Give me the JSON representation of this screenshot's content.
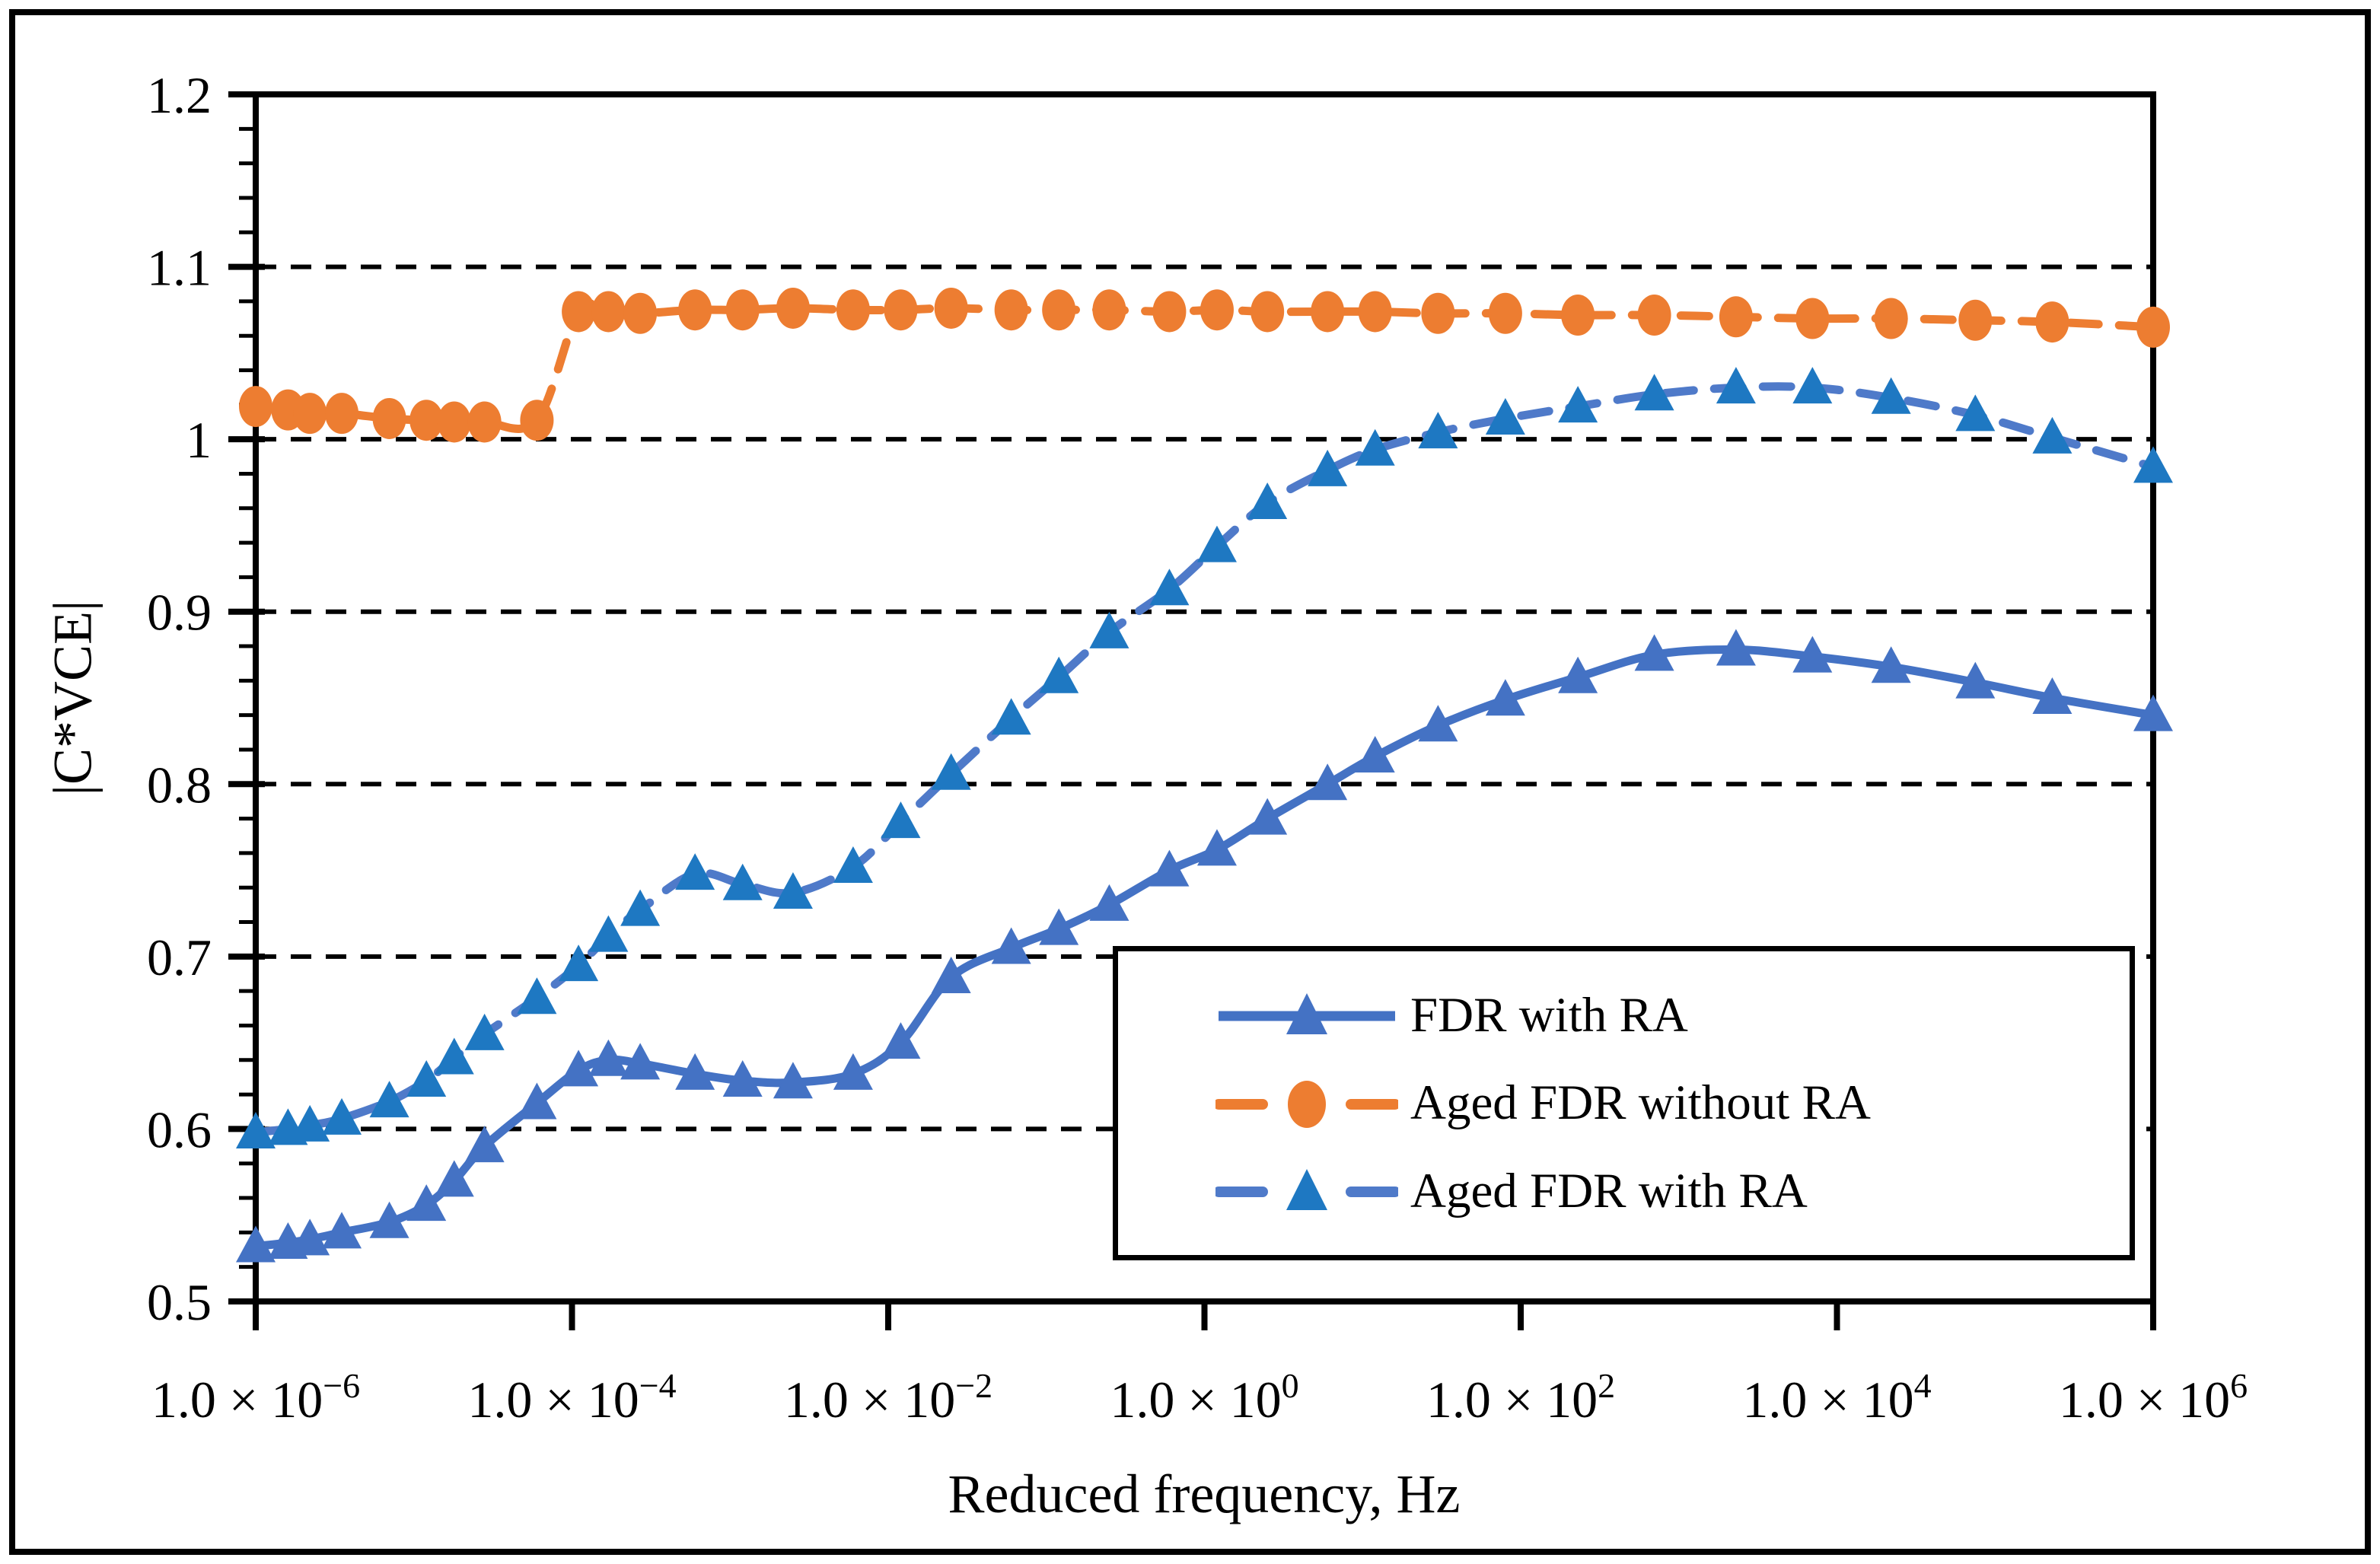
{
  "figure": {
    "background": "#ffffff",
    "frame_color": "#000000"
  },
  "chart_data": {
    "type": "line",
    "title": "",
    "xlabel": "Reduced frequency, Hz",
    "ylabel": "|C*VCE|",
    "x_scale": "log",
    "xlim": [
      1e-06,
      1000000
    ],
    "ylim": [
      0.5,
      1.2
    ],
    "grid": "horizontal dashed black lines at 0.1 intervals",
    "legend_position": "inside lower right, boxed",
    "y_tick_labels": [
      "1.2",
      "1.1",
      "1",
      "0.9",
      "0.8",
      "0.7",
      "0.6",
      "0.5"
    ],
    "y_tick_values": [
      1.2,
      1.1,
      1.0,
      0.9,
      0.8,
      0.7,
      0.6,
      0.5
    ],
    "y_minor_tick_step": 0.02,
    "x_ticks": [
      {
        "value": 1e-06,
        "mantissa": "1.0",
        "exponent": "−6"
      },
      {
        "value": 0.0001,
        "mantissa": "1.0",
        "exponent": "−4"
      },
      {
        "value": 0.01,
        "mantissa": "1.0",
        "exponent": "−2"
      },
      {
        "value": 1,
        "mantissa": "1.0",
        "exponent": "0"
      },
      {
        "value": 100,
        "mantissa": "1.0",
        "exponent": "2"
      },
      {
        "value": 10000,
        "mantissa": "1.0",
        "exponent": "4"
      },
      {
        "value": 1000000,
        "mantissa": "1.0",
        "exponent": "6"
      }
    ],
    "x_tick_times_glyph": "×",
    "x": [
      1e-06,
      1.6e-06,
      2.2e-06,
      3.5e-06,
      7e-06,
      1.2e-05,
      1.8e-05,
      2.8e-05,
      6e-05,
      0.00011,
      0.00017,
      0.00027,
      0.0006,
      0.0012,
      0.0025,
      0.006,
      0.012,
      0.025,
      0.06,
      0.12,
      0.25,
      0.6,
      1.2,
      2.5,
      6.0,
      12,
      30,
      80,
      230,
      700,
      2300,
      7000,
      22000,
      75000,
      230000,
      1000000
    ],
    "series": [
      {
        "name": "FDR with RA",
        "line_style": "solid",
        "marker": "triangle",
        "line_color": "#4472C4",
        "marker_color": "#4472C4",
        "values": [
          0.532,
          0.534,
          0.536,
          0.54,
          0.546,
          0.556,
          0.57,
          0.59,
          0.615,
          0.634,
          0.64,
          0.638,
          0.632,
          0.628,
          0.627,
          0.632,
          0.65,
          0.688,
          0.705,
          0.716,
          0.73,
          0.75,
          0.762,
          0.78,
          0.8,
          0.816,
          0.834,
          0.849,
          0.862,
          0.875,
          0.878,
          0.874,
          0.868,
          0.859,
          0.85,
          0.84
        ]
      },
      {
        "name": "Aged FDR without RA",
        "line_style": "dashed",
        "marker": "circle",
        "line_color": "#ED7D31",
        "marker_color": "#ED7D31",
        "values": [
          1.019,
          1.017,
          1.015,
          1.015,
          1.012,
          1.011,
          1.01,
          1.01,
          1.011,
          1.074,
          1.074,
          1.073,
          1.075,
          1.075,
          1.076,
          1.075,
          1.075,
          1.076,
          1.075,
          1.075,
          1.075,
          1.074,
          1.075,
          1.074,
          1.074,
          1.074,
          1.073,
          1.073,
          1.072,
          1.072,
          1.071,
          1.07,
          1.07,
          1.069,
          1.068,
          1.065
        ]
      },
      {
        "name": "Aged FDR with RA",
        "line_style": "dashed",
        "marker": "triangle",
        "line_color": "#4F7AC9",
        "marker_color": "#1E78C2",
        "values": [
          0.598,
          0.6,
          0.602,
          0.606,
          0.616,
          0.628,
          0.641,
          0.655,
          0.676,
          0.695,
          0.712,
          0.727,
          0.748,
          0.742,
          0.737,
          0.752,
          0.778,
          0.806,
          0.838,
          0.862,
          0.888,
          0.913,
          0.938,
          0.963,
          0.982,
          0.994,
          1.004,
          1.012,
          1.019,
          1.026,
          1.03,
          1.03,
          1.024,
          1.014,
          1.001,
          0.984
        ]
      }
    ]
  }
}
